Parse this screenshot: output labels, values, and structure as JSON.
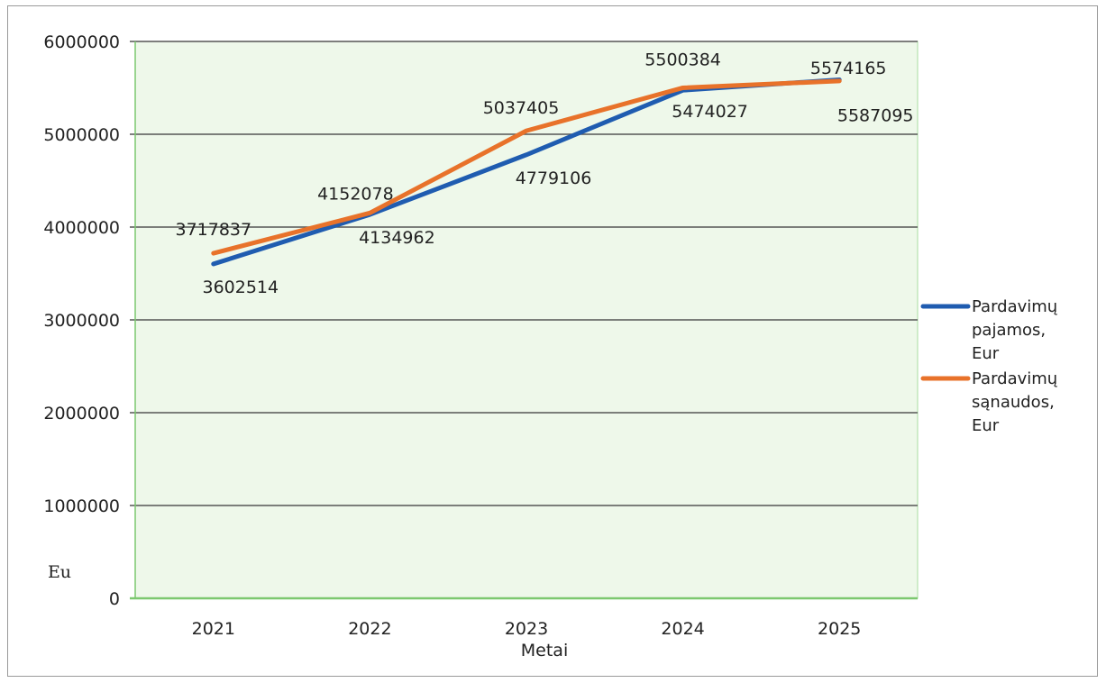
{
  "chart_data": {
    "type": "line",
    "categories": [
      "2021",
      "2022",
      "2023",
      "2024",
      "2025"
    ],
    "series": [
      {
        "name_lines": [
          "Pardavimų",
          "pajamos,",
          "Eur"
        ],
        "name": "Pardavimų pajamos, Eur",
        "color": "#1f5cb0",
        "values": [
          3602514,
          4134962,
          4779106,
          5474027,
          5587095
        ]
      },
      {
        "name_lines": [
          "Pardavimų",
          "sąnaudos,",
          "Eur"
        ],
        "name": "Pardavimų sąnaudos, Eur",
        "color": "#e8722a",
        "values": [
          3717837,
          4152078,
          5037405,
          5500384,
          5574165
        ]
      }
    ],
    "ylabel": "Eu",
    "xlabel": "Metai",
    "ylim": [
      0,
      6000000
    ],
    "yticks": [
      "0",
      "1000000",
      "2000000",
      "3000000",
      "4000000",
      "5000000",
      "6000000"
    ],
    "grid": true,
    "legend": "right",
    "plot_background": "#eef8ea"
  }
}
